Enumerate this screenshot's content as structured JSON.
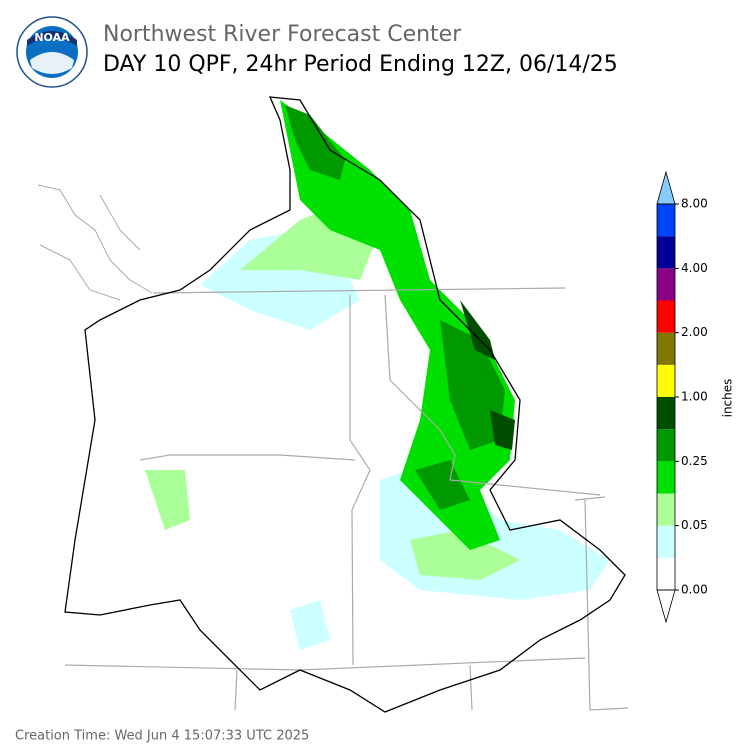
{
  "header": {
    "logo_text": "NOAA",
    "title": "Northwest River Forecast Center",
    "subtitle": "DAY 10 QPF, 24hr Period Ending 12Z, 06/14/25"
  },
  "colorbar": {
    "label": "inches",
    "colors": [
      "#ffffff",
      "#ccffff",
      "#aaff99",
      "#00e000",
      "#009900",
      "#004d00",
      "#ffff00",
      "#807800",
      "#ff0000",
      "#880088",
      "#000099",
      "#0044ff"
    ],
    "under_color": "#ffffff",
    "over_color": "#88ccff",
    "ticks": [
      {
        "value": 0,
        "label": "0.00"
      },
      {
        "value": 0.05,
        "label": "0.05"
      },
      {
        "value": 0.25,
        "label": "0.25"
      },
      {
        "value": 1,
        "label": "1.00"
      },
      {
        "value": 2,
        "label": "2.00"
      },
      {
        "value": 4,
        "label": "4.00"
      },
      {
        "value": 8,
        "label": "8.00"
      }
    ]
  },
  "footer": {
    "creation_time": "Creation Time: Wed Jun 4 15:07:33 UTC 2025"
  }
}
